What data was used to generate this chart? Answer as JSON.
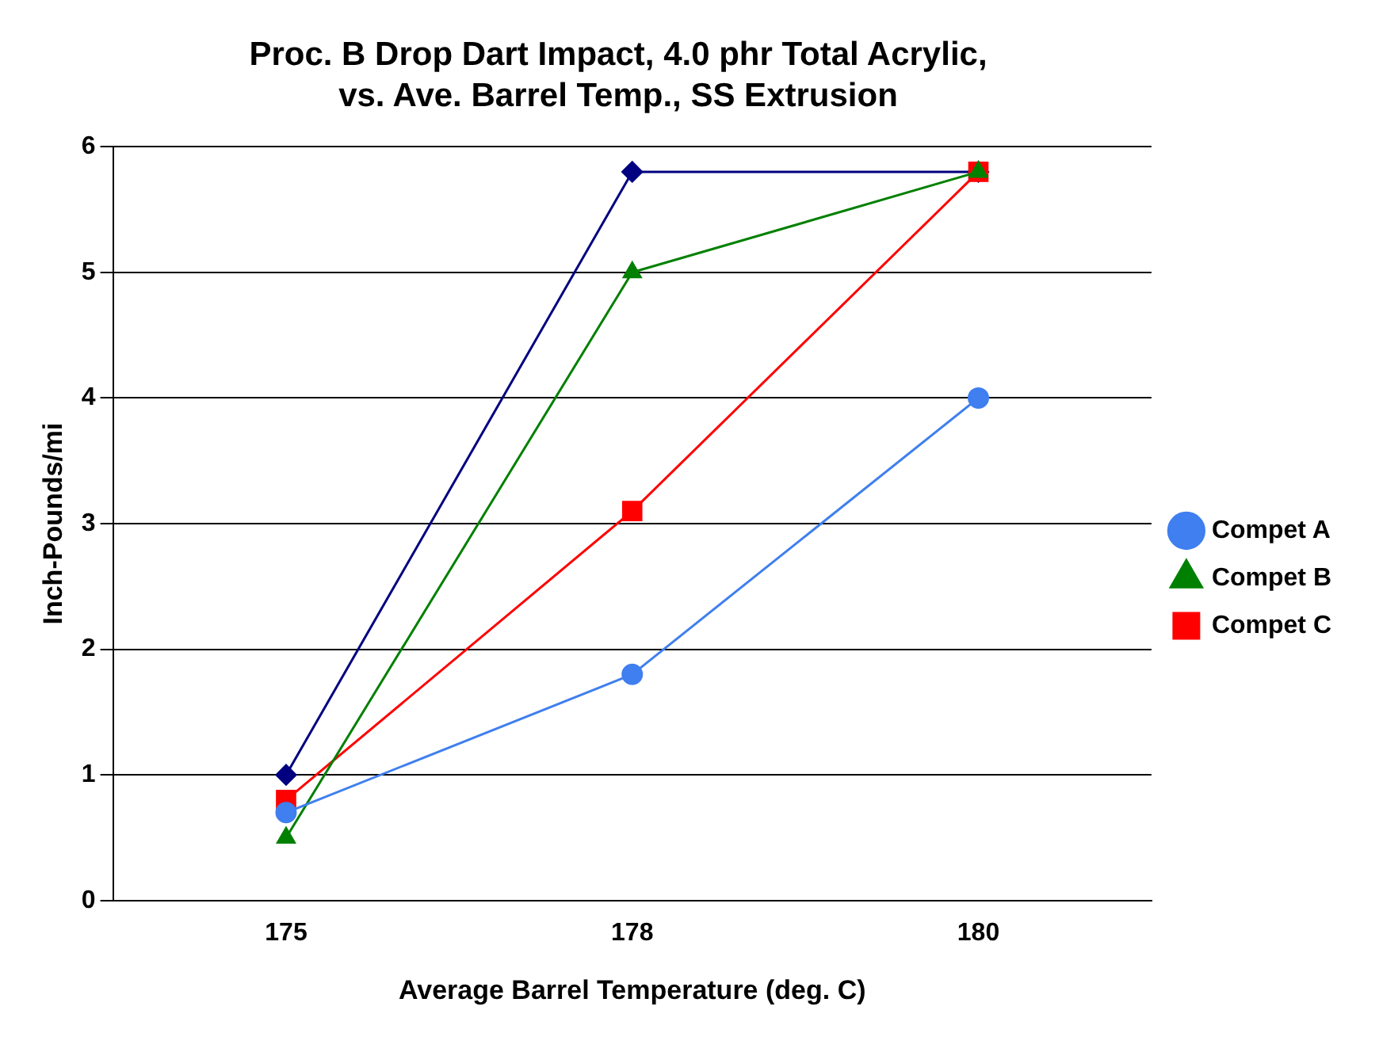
{
  "chart_data": {
    "type": "line",
    "title": "Proc. B Drop Dart Impact, 4.0 phr Total Acrylic, vs. Ave. Barrel Temp., SS Extrusion",
    "xlabel": "Average Barrel Temperature (deg. C)",
    "ylabel": "Inch-Pounds/mi",
    "categories": [
      "175",
      "178",
      "180"
    ],
    "series": [
      {
        "color": "#000080",
        "marker": "diamond",
        "values": [
          1.0,
          5.8,
          5.8
        ]
      },
      {
        "name": "Compet C",
        "color": "#ff0000",
        "marker": "square",
        "values": [
          0.8,
          3.1,
          5.8
        ]
      },
      {
        "name": "Compet B",
        "color": "#008000",
        "marker": "triangle",
        "values": [
          0.5,
          5.0,
          5.8
        ]
      },
      {
        "name": "Compet A",
        "color": "#3f7fef",
        "marker": "circle",
        "values": [
          0.7,
          1.8,
          4.0
        ]
      }
    ],
    "ylim": [
      0,
      6
    ],
    "yticks": [
      0,
      1,
      2,
      3,
      4,
      5,
      6
    ],
    "grid": "y",
    "legend": "right"
  }
}
